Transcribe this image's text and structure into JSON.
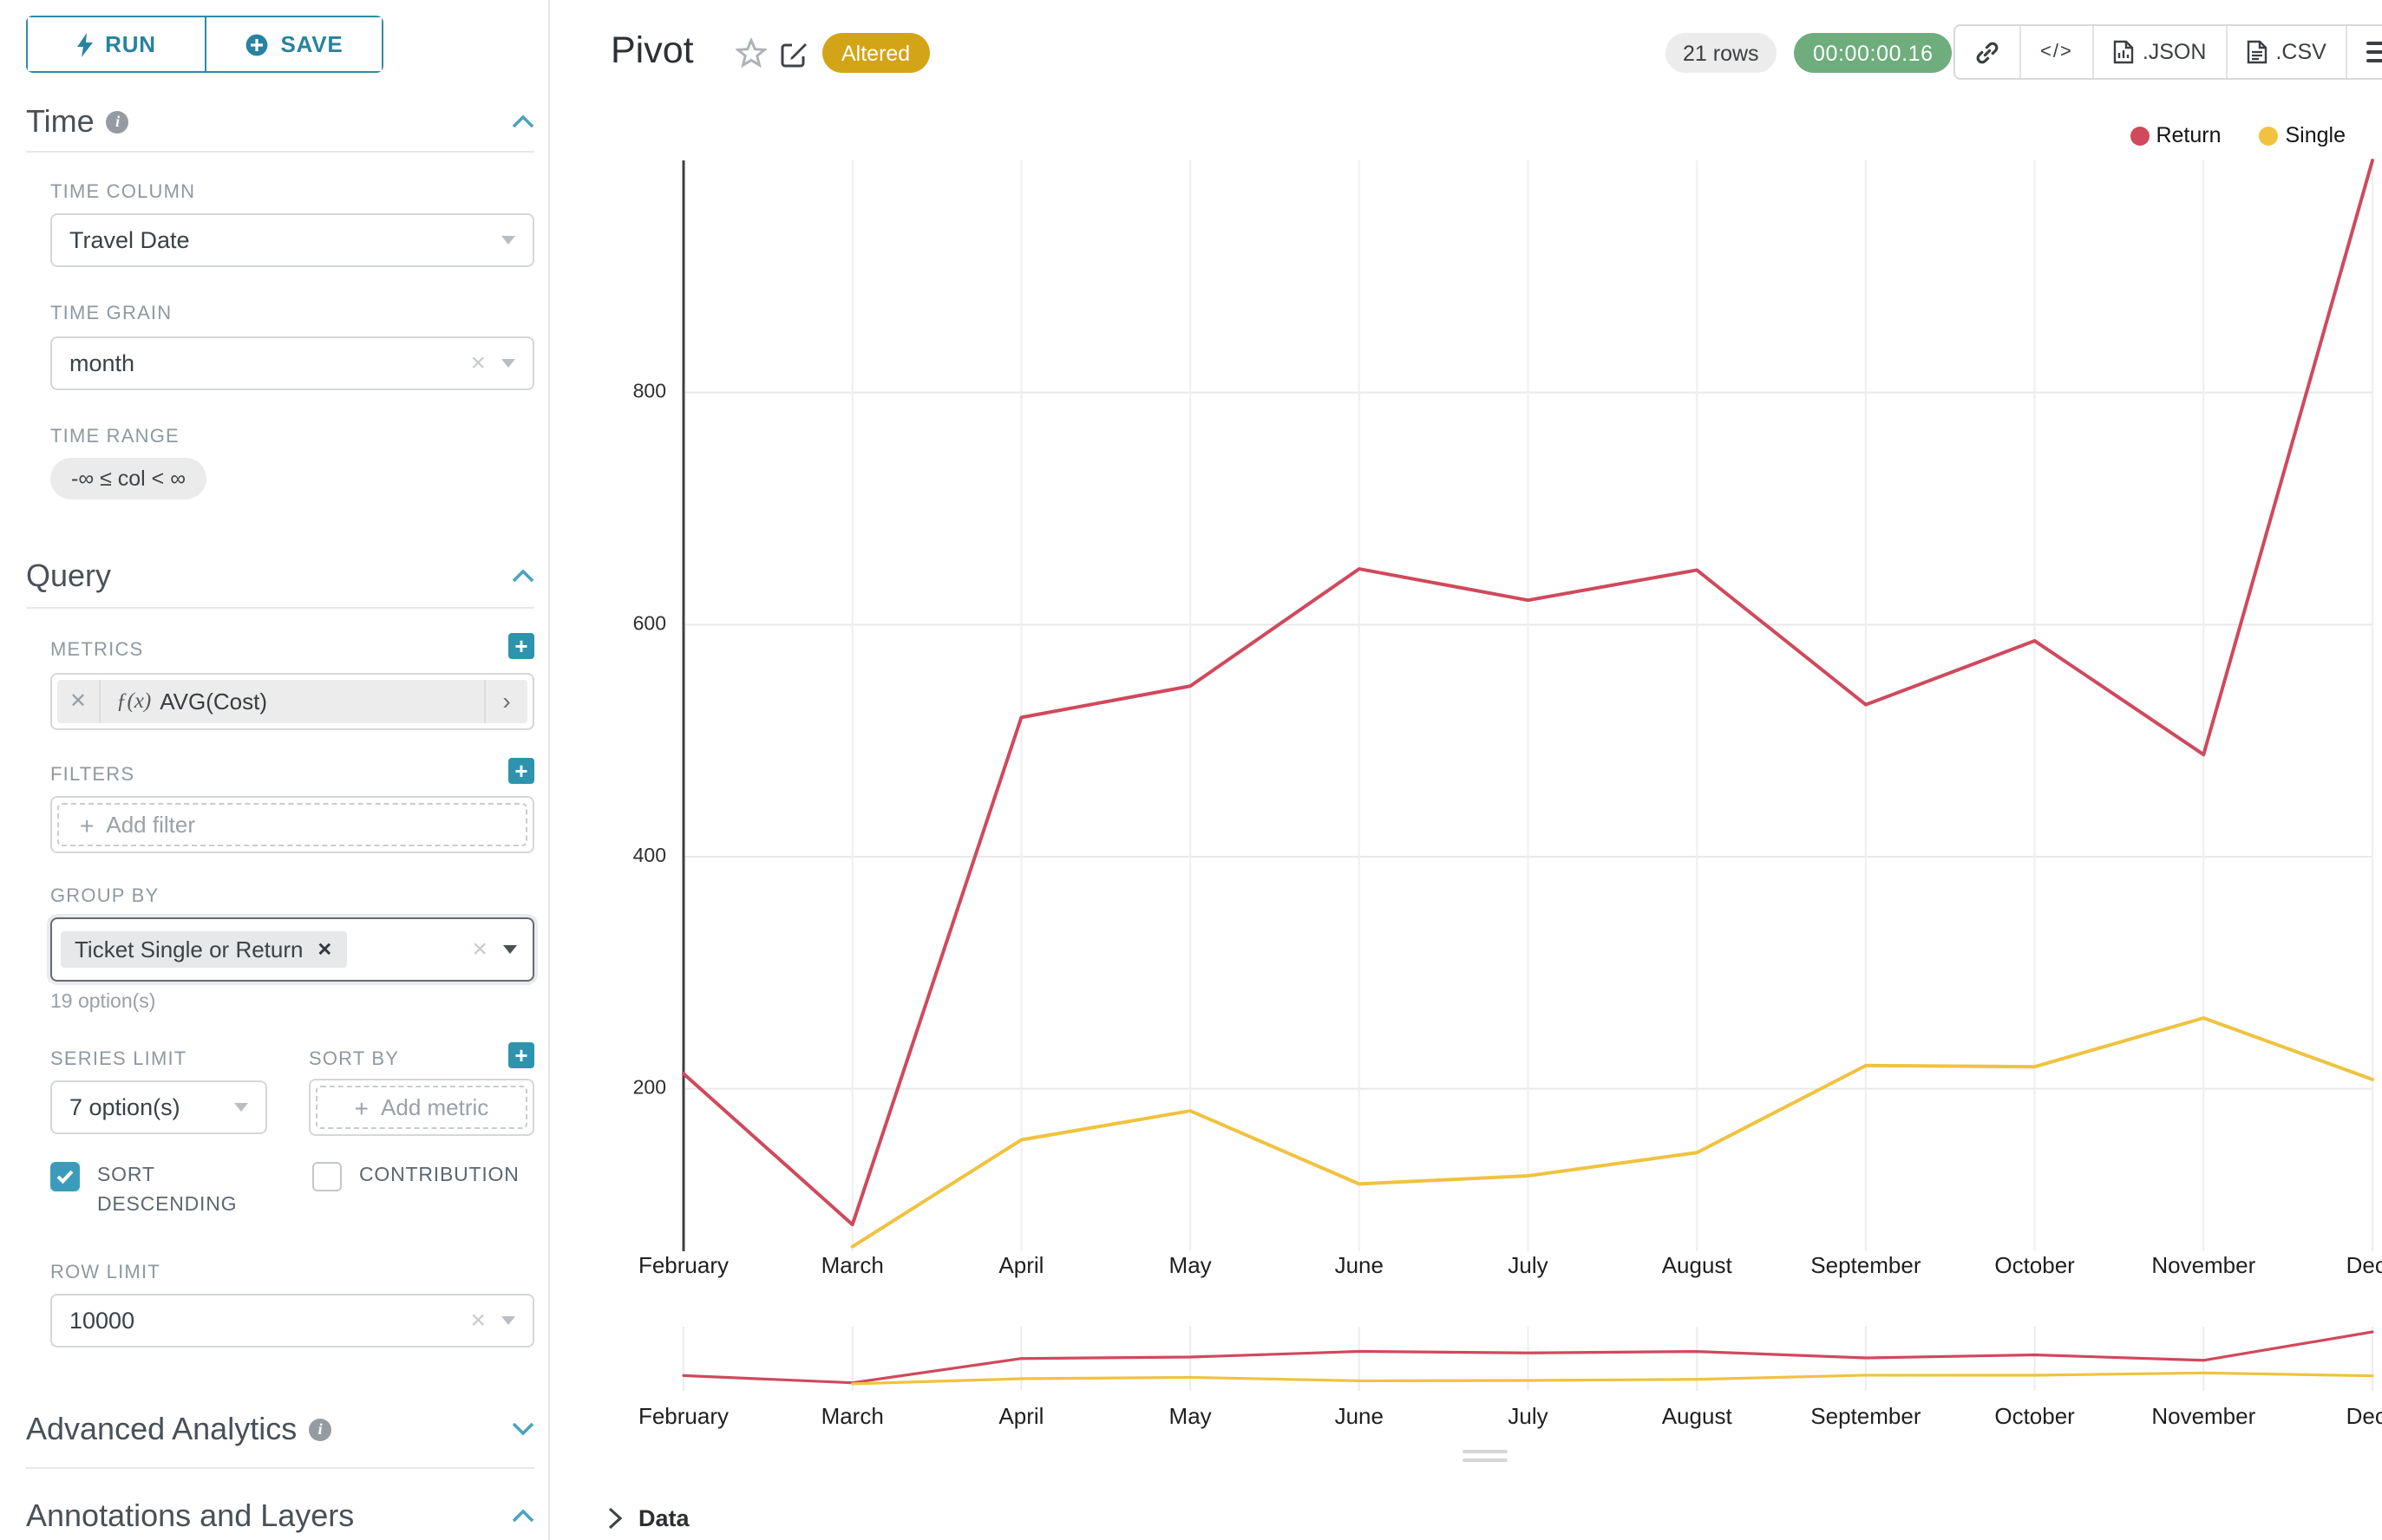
{
  "sidebar": {
    "run_label": "RUN",
    "save_label": "SAVE",
    "time": {
      "title": "Time",
      "column_label": "TIME COLUMN",
      "column_value": "Travel Date",
      "grain_label": "TIME GRAIN",
      "grain_value": "month",
      "range_label": "TIME RANGE",
      "range_value": "-∞ ≤ col < ∞"
    },
    "query": {
      "title": "Query",
      "metrics_label": "METRICS",
      "metric_fn": "ƒ(x)",
      "metric_value": "AVG(Cost)",
      "filters_label": "FILTERS",
      "add_filter": "Add filter",
      "group_by_label": "GROUP BY",
      "group_by_tag": "Ticket Single or Return",
      "group_by_options": "19 option(s)",
      "series_limit_label": "SERIES LIMIT",
      "series_limit_value": "7 option(s)",
      "sort_by_label": "SORT BY",
      "add_metric": "Add metric",
      "sort_descending_label": "SORT DESCENDING",
      "contribution_label": "CONTRIBUTION",
      "row_limit_label": "ROW LIMIT",
      "row_limit_value": "10000"
    },
    "advanced_analytics_title": "Advanced Analytics",
    "annotations_title": "Annotations and Layers"
  },
  "header": {
    "title": "Pivot",
    "altered_badge": "Altered",
    "rows_badge": "21 rows",
    "timer": "00:00:00.16",
    "code_label": "</>",
    "json_label": ".JSON",
    "csv_label": ".CSV"
  },
  "data_panel": {
    "label": "Data"
  },
  "chart_data": {
    "type": "line",
    "title": "Pivot",
    "categories": [
      "February",
      "March",
      "April",
      "May",
      "June",
      "July",
      "August",
      "September",
      "October",
      "November",
      "December"
    ],
    "tick_labels": [
      "February",
      "March",
      "April",
      "May",
      "June",
      "July",
      "August",
      "September",
      "October",
      "November",
      "Dece"
    ],
    "series": [
      {
        "name": "Return",
        "color": "#d0495c",
        "values": [
          213,
          83,
          520,
          547,
          648,
          621,
          647,
          531,
          586,
          488,
          1000
        ]
      },
      {
        "name": "Single",
        "color": "#f0c23f",
        "values": [
          null,
          64,
          156,
          181,
          118,
          125,
          145,
          220,
          219,
          261,
          208
        ]
      }
    ],
    "xlabel": "",
    "ylabel": "",
    "ylim": [
      60,
      1000
    ],
    "yticks": [
      200,
      400,
      600,
      800
    ],
    "grid": true,
    "legend_position": "top-right",
    "minimap": true,
    "minimap_ylim": [
      0,
      1000
    ]
  }
}
